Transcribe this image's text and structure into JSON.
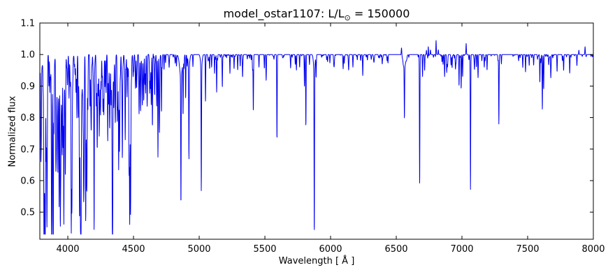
{
  "figure": {
    "title_parts": {
      "prefix": "model_ostar1107: L/L",
      "sun_symbol": "⊙",
      "suffix": " = 150000"
    },
    "background_color": "#ffffff",
    "axis_color": "#000000"
  },
  "chart_data": {
    "type": "line",
    "title": "model_ostar1107: L/L⊙ = 150000",
    "xlabel": "Wavelength [ Å ]",
    "ylabel": "Normalized flux",
    "xlim": [
      3787,
      8000
    ],
    "ylim": [
      0.414,
      1.1
    ],
    "xticks": [
      4000,
      4500,
      5000,
      5500,
      6000,
      6500,
      7000,
      7500,
      8000
    ],
    "yticks": [
      0.5,
      0.6,
      0.7,
      0.8,
      0.9,
      1.0,
      1.1
    ],
    "grid": false,
    "legend": null,
    "line_color": "#0000ee",
    "continuum_flux": 1.0,
    "deepest_point": {
      "wavelength": 5876,
      "flux": 0.475
    },
    "line_format": "[wavelength_A, core_flux, sigma_A, optional_wing_depth, optional_wing_sigma_A]; core_flux>1 means emission spike",
    "spectral_lines": [
      [
        3798,
        0.8,
        1.3,
        0.05,
        7
      ],
      [
        3819,
        0.635,
        1.4,
        0.05,
        7
      ],
      [
        3835,
        0.86,
        1.3,
        0.04,
        6
      ],
      [
        3856,
        0.9,
        1.0
      ],
      [
        3863,
        0.92,
        1.0
      ],
      [
        3889,
        0.565,
        1.4,
        0.06,
        8
      ],
      [
        3920,
        0.89,
        1.0
      ],
      [
        3934,
        0.565,
        1.2,
        0.03,
        5
      ],
      [
        3964,
        0.76,
        1.2
      ],
      [
        3970,
        0.535,
        1.4,
        0.07,
        9
      ],
      [
        4009,
        0.88,
        1.1
      ],
      [
        4026,
        0.545,
        1.4,
        0.07,
        8
      ],
      [
        4069,
        0.82,
        1.2
      ],
      [
        4089,
        0.8,
        1.2
      ],
      [
        4101,
        0.565,
        1.5,
        0.08,
        10
      ],
      [
        4116,
        0.85,
        1.1
      ],
      [
        4121,
        0.76,
        1.2
      ],
      [
        4144,
        0.74,
        1.2
      ],
      [
        4200,
        0.78,
        1.3
      ],
      [
        4233,
        0.88,
        1.1
      ],
      [
        4267,
        0.86,
        1.1
      ],
      [
        4317,
        0.88,
        1.1
      ],
      [
        4340,
        0.565,
        1.5,
        0.08,
        10
      ],
      [
        4350,
        0.88,
        1.1
      ],
      [
        4387,
        0.78,
        1.3
      ],
      [
        4415,
        0.9,
        1.1
      ],
      [
        4471,
        0.535,
        1.4,
        0.06,
        8
      ],
      [
        4481,
        0.92,
        1.0
      ],
      [
        4542,
        0.84,
        1.3
      ],
      [
        4553,
        0.88,
        1.1
      ],
      [
        4568,
        0.9,
        1.0
      ],
      [
        4628,
        0.9,
        1.1
      ],
      [
        4640,
        1.008,
        12.0
      ],
      [
        4644,
        0.825,
        1.2
      ],
      [
        4661,
        0.87,
        1.1
      ],
      [
        4676,
        0.88,
        1.1
      ],
      [
        4686,
        0.715,
        1.4
      ],
      [
        4713,
        0.815,
        1.2
      ],
      [
        4861,
        0.6,
        1.5,
        0.07,
        10
      ],
      [
        4877,
        0.835,
        1.1
      ],
      [
        4897,
        0.86,
        1.0
      ],
      [
        4922,
        0.72,
        1.3,
        0.04,
        6
      ],
      [
        5016,
        0.605,
        1.3,
        0.04,
        6
      ],
      [
        5048,
        0.85,
        1.1
      ],
      [
        5117,
        0.94,
        1.0
      ],
      [
        5133,
        0.88,
        1.0
      ],
      [
        5176,
        0.9,
        1.0
      ],
      [
        5234,
        0.94,
        1.0
      ],
      [
        5293,
        0.95,
        1.0
      ],
      [
        5330,
        0.93,
        1.0
      ],
      [
        5412,
        0.82,
        1.4
      ],
      [
        5455,
        0.96,
        1.0
      ],
      [
        5510,
        0.93,
        1.0
      ],
      [
        5592,
        0.74,
        1.2
      ],
      [
        5696,
        0.96,
        1.0
      ],
      [
        5740,
        0.95,
        1.0
      ],
      [
        5801,
        0.9,
        1.1
      ],
      [
        5812,
        0.77,
        1.2
      ],
      [
        5876,
        0.475,
        1.4,
        0.05,
        6
      ],
      [
        5890,
        0.93,
        0.9
      ],
      [
        6027,
        0.975,
        0.9
      ],
      [
        6096,
        0.96,
        0.9
      ],
      [
        6138,
        0.965,
        0.9
      ],
      [
        6170,
        0.96,
        0.9
      ],
      [
        6245,
        0.94,
        1.0
      ],
      [
        6330,
        0.975,
        3.0
      ],
      [
        6393,
        0.97,
        0.9
      ],
      [
        6430,
        0.98,
        0.9
      ],
      [
        6540,
        1.025,
        2.0
      ],
      [
        6562,
        0.835,
        1.6,
        0.04,
        10
      ],
      [
        6580,
        1.012,
        2.5
      ],
      [
        6678,
        0.58,
        1.3
      ],
      [
        6700,
        0.93,
        0.9
      ],
      [
        6716,
        0.95,
        0.9
      ],
      [
        6730,
        1.02,
        0.8
      ],
      [
        6744,
        1.03,
        0.8
      ],
      [
        6760,
        1.015,
        0.8
      ],
      [
        6803,
        1.045,
        0.9
      ],
      [
        6820,
        1.015,
        0.8
      ],
      [
        6868,
        0.93,
        1.0
      ],
      [
        6884,
        0.945,
        0.9
      ],
      [
        6890,
        0.96,
        2.5
      ],
      [
        6978,
        0.9,
        1.0
      ],
      [
        6994,
        0.89,
        1.0
      ],
      [
        7005,
        0.93,
        0.9
      ],
      [
        7032,
        1.035,
        0.9
      ],
      [
        7065,
        0.57,
        1.3
      ],
      [
        7110,
        0.96,
        0.9
      ],
      [
        7122,
        0.95,
        0.9
      ],
      [
        7170,
        0.96,
        0.9
      ],
      [
        7191,
        0.95,
        0.9
      ],
      [
        7281,
        0.78,
        1.2
      ],
      [
        7300,
        0.97,
        0.9
      ],
      [
        7484,
        0.945,
        1.0
      ],
      [
        7512,
        0.97,
        0.9
      ],
      [
        7593,
        0.91,
        1.0
      ],
      [
        7612,
        0.83,
        1.1
      ],
      [
        7622,
        0.9,
        1.0
      ],
      [
        7676,
        0.935,
        1.0
      ],
      [
        7724,
        0.945,
        1.0
      ],
      [
        7774,
        0.95,
        1.0
      ],
      [
        7820,
        0.955,
        0.9
      ],
      [
        7875,
        0.97,
        0.9
      ],
      [
        7890,
        1.014,
        0.9
      ],
      [
        7937,
        1.025,
        0.9
      ]
    ],
    "weak_line_forest": {
      "seed": 20,
      "region_format": "[wl_min_A, wl_max_A, count, depth_min, depth_max]",
      "regions": [
        [
          3787,
          3960,
          60,
          0.02,
          0.3
        ],
        [
          3960,
          4120,
          40,
          0.02,
          0.26
        ],
        [
          4120,
          4320,
          55,
          0.02,
          0.26
        ],
        [
          4320,
          4500,
          45,
          0.02,
          0.22
        ],
        [
          4500,
          4700,
          42,
          0.015,
          0.16
        ],
        [
          4700,
          5050,
          14,
          0.008,
          0.05
        ],
        [
          5050,
          5900,
          26,
          0.006,
          0.05
        ],
        [
          5900,
          6520,
          20,
          0.005,
          0.03
        ],
        [
          6560,
          7500,
          22,
          0.006,
          0.05
        ],
        [
          7500,
          8000,
          20,
          0.006,
          0.04
        ],
        [
          4700,
          8000,
          80,
          0.002,
          0.012
        ]
      ]
    }
  }
}
